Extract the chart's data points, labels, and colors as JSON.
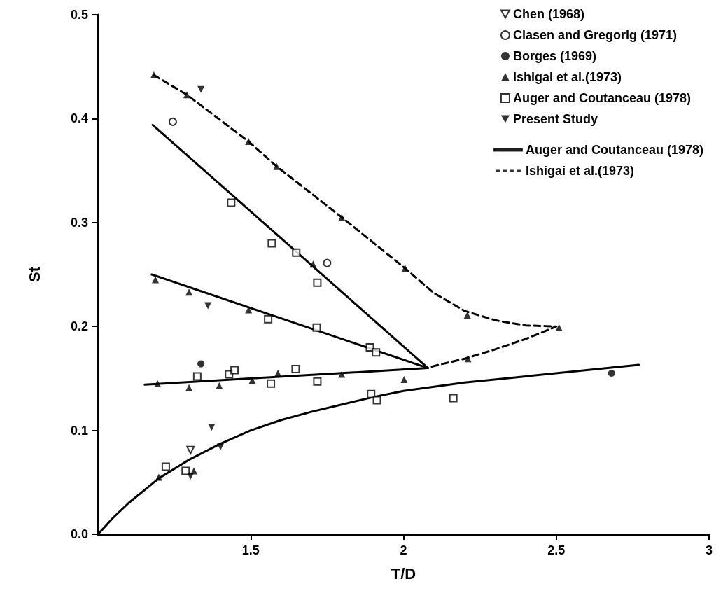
{
  "chart_data": {
    "type": "scatter",
    "xlabel": "T/D",
    "ylabel": "St",
    "xlim": [
      1,
      3
    ],
    "xticks": [
      1.5,
      2,
      2.5,
      3
    ],
    "ylim": [
      0,
      0.5
    ],
    "yticks": [
      {
        "value": 0,
        "label": "0.0"
      },
      {
        "value": 0.1,
        "label": "0.1"
      },
      {
        "value": 0.2,
        "label": "0.2"
      },
      {
        "value": 0.3,
        "label": "0.3"
      },
      {
        "value": 0.4,
        "label": "0.4"
      },
      {
        "value": 0.5,
        "label": "0.5"
      }
    ],
    "grid": false,
    "legend": "top right",
    "series": [
      {
        "name": "Chen (1968)",
        "marker": "triangle-down-open",
        "color": "#000000",
        "x": [
          1.303
        ],
        "values": [
          0.081
        ]
      },
      {
        "name": "Clasen and Gregorig (1971)",
        "marker": "circle-open",
        "color": "#000000",
        "x": [
          1.245,
          1.75
        ],
        "values": [
          0.397,
          0.261
        ]
      },
      {
        "name": "Borges (1969)",
        "marker": "circle",
        "color": "#000000",
        "x": [
          1.337,
          2.681
        ],
        "values": [
          0.164,
          0.155
        ]
      },
      {
        "name": "Ishigai et al.(1973)",
        "marker": "triangle",
        "color": "#000000",
        "x": [
          1.183,
          1.291,
          1.493,
          1.585,
          1.798,
          2.005,
          2.209,
          2.509,
          2.211,
          1.704,
          1.188,
          1.298,
          1.493,
          1.195,
          1.298,
          1.397,
          1.505,
          1.589,
          1.798,
          2.002,
          1.199,
          1.314
        ],
        "values": [
          0.442,
          0.423,
          0.378,
          0.354,
          0.305,
          0.256,
          0.211,
          0.199,
          0.169,
          0.26,
          0.245,
          0.233,
          0.216,
          0.145,
          0.141,
          0.143,
          0.148,
          0.155,
          0.154,
          0.149,
          0.055,
          0.061
        ]
      },
      {
        "name": "Auger and Coutanceau (1978)",
        "marker": "square-open",
        "color": "#000000",
        "x": [
          1.436,
          1.569,
          1.649,
          1.718,
          1.557,
          1.716,
          1.89,
          1.91,
          1.325,
          1.429,
          1.447,
          1.566,
          1.647,
          1.718,
          1.894,
          1.913,
          2.163,
          1.222,
          1.287
        ],
        "values": [
          0.319,
          0.28,
          0.271,
          0.242,
          0.207,
          0.199,
          0.18,
          0.175,
          0.152,
          0.154,
          0.158,
          0.145,
          0.159,
          0.147,
          0.135,
          0.129,
          0.131,
          0.065,
          0.061
        ]
      },
      {
        "name": "Present Study",
        "marker": "triangle-down",
        "color": "#000000",
        "x": [
          1.337,
          1.36,
          1.372,
          1.401,
          1.303
        ],
        "values": [
          0.428,
          0.22,
          0.103,
          0.084,
          0.056
        ]
      },
      {
        "name": "Auger and Coutanceau (1978)",
        "type": "line",
        "line_style": "solid",
        "marker": "none",
        "color": "#000000",
        "x": [
          1.179,
          2.08
        ],
        "values": [
          0.394,
          0.16
        ]
      },
      {
        "type": "line",
        "line_style": "solid",
        "marker": "none",
        "color": "#000000",
        "x": [
          1.176,
          2.08
        ],
        "values": [
          0.25,
          0.16
        ]
      },
      {
        "type": "line",
        "line_style": "solid",
        "marker": "none",
        "color": "#000000",
        "x": [
          1.153,
          2.08
        ],
        "values": [
          0.144,
          0.16
        ]
      },
      {
        "type": "line",
        "line_style": "solid",
        "marker": "none",
        "color": "#000000",
        "x": [
          1,
          1.05,
          1.1,
          1.2,
          1.3,
          1.4,
          1.5,
          1.6,
          1.7,
          1.8,
          1.9,
          2,
          2.2,
          2.4,
          2.6,
          2.77
        ],
        "values": [
          0,
          0.016,
          0.03,
          0.054,
          0.072,
          0.087,
          0.1,
          0.11,
          0.118,
          0.125,
          0.132,
          0.138,
          0.146,
          0.152,
          0.158,
          0.163
        ]
      },
      {
        "name": "Ishigai et al.(1973)",
        "type": "line",
        "line_style": "dashed",
        "marker": "none",
        "color": "#000000",
        "x": [
          1.183,
          1.291,
          1.493,
          1.585,
          1.798,
          2.005,
          2.1,
          2.2,
          2.3,
          2.4,
          2.5,
          2.4,
          2.3,
          2.2,
          2.1,
          2.08
        ],
        "values": [
          0.442,
          0.423,
          0.378,
          0.354,
          0.305,
          0.256,
          0.232,
          0.215,
          0.206,
          0.201,
          0.2,
          0.188,
          0.178,
          0.169,
          0.162,
          0.16
        ]
      }
    ]
  }
}
